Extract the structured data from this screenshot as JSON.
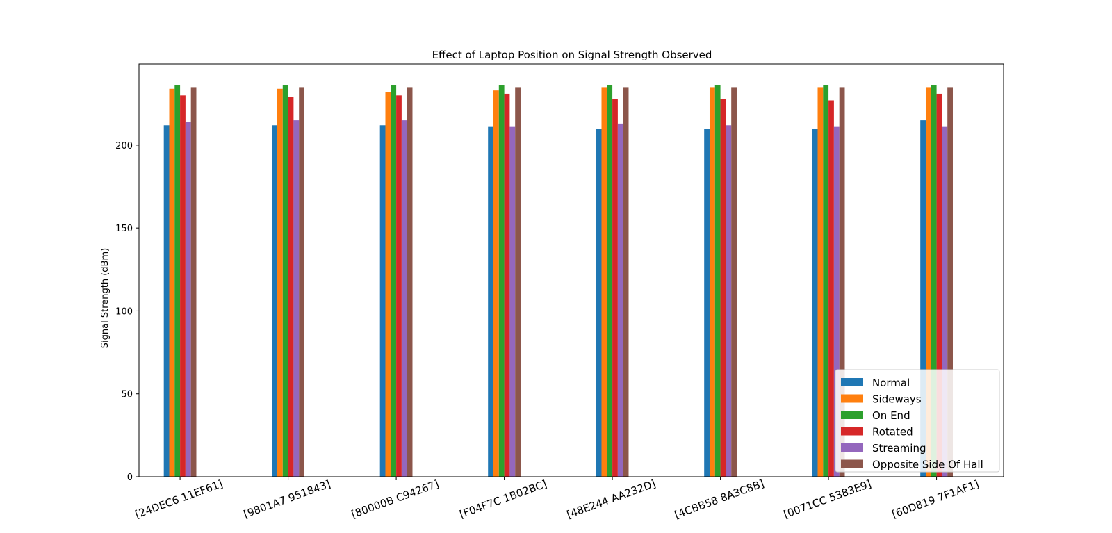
{
  "chart_data": {
    "type": "bar",
    "title": "Effect of Laptop Position on Signal Strength Observed",
    "xlabel": "",
    "ylabel": "Signal Strength (dBm)",
    "ylim": [
      0,
      249
    ],
    "yticks": [
      0,
      50,
      100,
      150,
      200
    ],
    "grid": false,
    "legend_position": "bottom-right",
    "categories": [
      "[24DEC6 11EF61]",
      "[9801A7 951843]",
      "[80000B C94267]",
      "[F04F7C 1B02BC]",
      "[48E244 AA232D]",
      "[4CBB58 8A3C8B]",
      "[0071CC 5383E9]",
      "[60D819 7F1AF1]"
    ],
    "series": [
      {
        "name": "Normal",
        "color": "#1f77b4",
        "values": [
          212,
          212,
          212,
          211,
          210,
          210,
          210,
          215
        ]
      },
      {
        "name": "Sideways",
        "color": "#ff7f0e",
        "values": [
          234,
          234,
          232,
          233,
          235,
          235,
          235,
          235
        ]
      },
      {
        "name": "On End",
        "color": "#2ca02c",
        "values": [
          236,
          236,
          236,
          236,
          236,
          236,
          236,
          236
        ]
      },
      {
        "name": "Rotated",
        "color": "#d62728",
        "values": [
          230,
          229,
          230,
          231,
          228,
          228,
          227,
          231
        ]
      },
      {
        "name": "Streaming",
        "color": "#9467bd",
        "values": [
          214,
          215,
          215,
          211,
          213,
          212,
          211,
          211
        ]
      },
      {
        "name": "Opposite Side Of Hall",
        "color": "#8c564b",
        "values": [
          235,
          235,
          235,
          235,
          235,
          235,
          235,
          235
        ]
      }
    ]
  }
}
